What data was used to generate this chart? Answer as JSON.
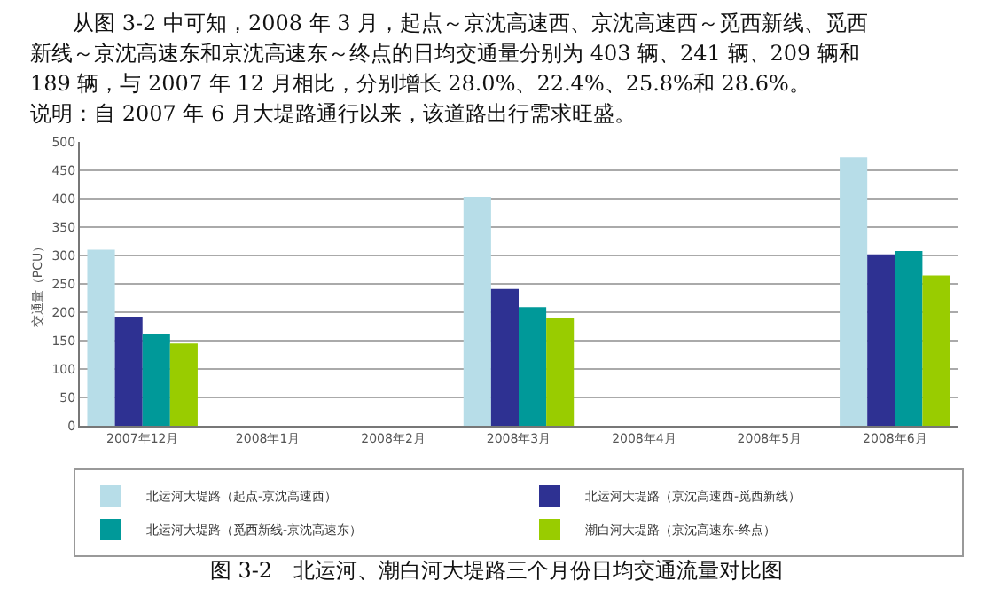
{
  "chart_data": {
    "type": "bar",
    "title": "图 3-2　北运河、潮白河大堤路三个月份日均交通流量对比图",
    "annotations": [
      "　　从图 3-2 中可知，2008 年 3 月，起点～京沈高速西、京沈高速西～觅西新线、觅西新线～京沈高速东和京沈高速东～终点的日均交通量分别为 403 辆、241 辆、209 辆和 189 辆，与 2007 年 12 月相比，分别增长 28.0%、22.4%、25.8%和 28.6%。",
      "说明：自 2007 年 6 月大堤路通行以来，该道路出行需求旺盛。"
    ],
    "ylabel": "交通量（PCU）",
    "categories": [
      "2007年12月",
      "2008年1月",
      "2008年2月",
      "2008年3月",
      "2008年4月",
      "2008年5月",
      "2008年6月"
    ],
    "series": [
      {
        "name": "北运河大堤路（起点-京沈高速西）",
        "color": "#b7dde8",
        "values": [
          310,
          null,
          null,
          403,
          null,
          null,
          473
        ]
      },
      {
        "name": "北运河大堤路（京沈高速西-觅西新线）",
        "color": "#2e3192",
        "values": [
          192,
          null,
          null,
          241,
          null,
          null,
          302
        ]
      },
      {
        "name": "北运河大堤路（觅西新线-京沈高速东）",
        "color": "#009999",
        "values": [
          162,
          null,
          null,
          209,
          null,
          null,
          308
        ]
      },
      {
        "name": "潮白河大堤路（京沈高速东-终点）",
        "color": "#99cc00",
        "values": [
          145,
          null,
          null,
          189,
          null,
          null,
          265
        ]
      }
    ],
    "ylim": [
      0,
      500
    ],
    "yticks": [
      0,
      50,
      100,
      150,
      200,
      250,
      300,
      350,
      400,
      450,
      500
    ],
    "grid": "y",
    "legend": "bottom"
  }
}
